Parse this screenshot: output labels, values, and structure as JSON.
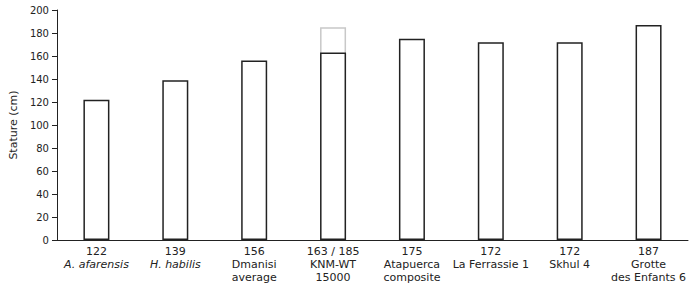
{
  "chart_data": {
    "type": "bar",
    "y_label": "Stature (cm)",
    "categories": [
      "A. afarensis",
      "H. habilis",
      "Dmanisi\naverage",
      "KNM-WT\n15000",
      "Atapuerca\ncomposite",
      "La Ferrassie 1",
      "Skhul 4",
      "Grotte\ndes Enfants 6"
    ],
    "value_labels": [
      "122",
      "139",
      "156",
      "163 / 185",
      "175",
      "172",
      "172",
      "187"
    ],
    "series": [
      {
        "color": "#222222",
        "values": [
          122,
          139,
          156,
          163,
          175,
          172,
          172,
          187
        ]
      },
      {
        "color": "#c8c8c8",
        "values": [
          null,
          null,
          null,
          185,
          null,
          null,
          null,
          null
        ]
      }
    ],
    "ylim": [
      0,
      200
    ],
    "yticks": [
      0,
      20,
      40,
      60,
      80,
      100,
      120,
      140,
      160,
      180,
      200
    ],
    "grid": false
  }
}
